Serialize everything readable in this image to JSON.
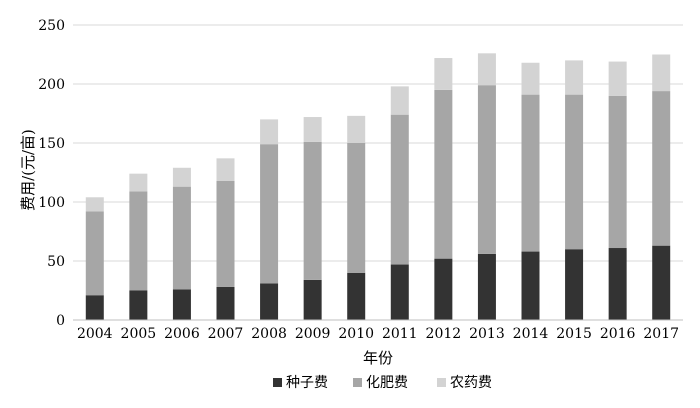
{
  "chart_data": {
    "type": "bar",
    "stacked": true,
    "categories": [
      "2004",
      "2005",
      "2006",
      "2007",
      "2008",
      "2009",
      "2010",
      "2011",
      "2012",
      "2013",
      "2014",
      "2015",
      "2016",
      "2017"
    ],
    "series": [
      {
        "name": "种子费",
        "color": "#333333",
        "values": [
          21,
          25,
          26,
          28,
          31,
          34,
          40,
          47,
          52,
          56,
          58,
          60,
          61,
          63
        ]
      },
      {
        "name": "化肥费",
        "color": "#a6a6a6",
        "values": [
          71,
          84,
          87,
          90,
          118,
          117,
          110,
          127,
          143,
          143,
          133,
          131,
          129,
          131
        ]
      },
      {
        "name": "农药费",
        "color": "#d3d3d3",
        "values": [
          12,
          15,
          16,
          19,
          21,
          21,
          23,
          24,
          27,
          27,
          27,
          29,
          29,
          31
        ]
      }
    ],
    "ylim": [
      0,
      250
    ],
    "yticks": [
      0,
      50,
      100,
      150,
      200,
      250
    ],
    "xlabel": "年份",
    "ylabel": "费用/(元/亩)",
    "grid": true,
    "legend_position": "bottom"
  }
}
